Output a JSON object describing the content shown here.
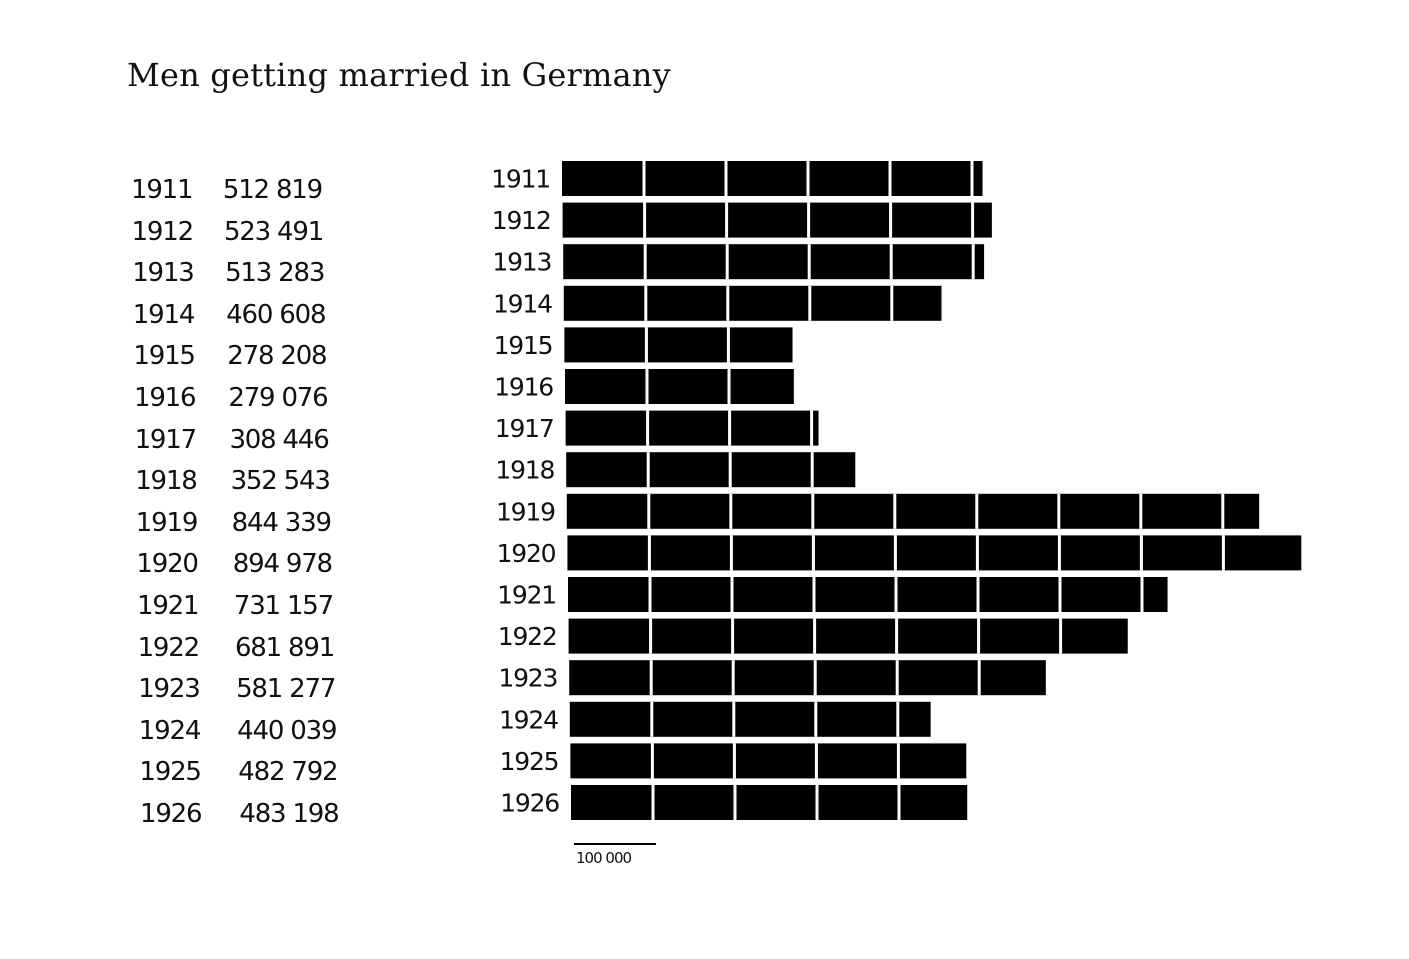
{
  "title": "Men getting married in Germany",
  "table": {
    "rows": [
      {
        "year": "1911",
        "value": "512 819"
      },
      {
        "year": "1912",
        "value": "523 491"
      },
      {
        "year": "1913",
        "value": "513 283"
      },
      {
        "year": "1914",
        "value": "460 608"
      },
      {
        "year": "1915",
        "value": "278 208"
      },
      {
        "year": "1916",
        "value": "279 076"
      },
      {
        "year": "1917",
        "value": "308 446"
      },
      {
        "year": "1918",
        "value": "352 543"
      },
      {
        "year": "1919",
        "value": "844 339"
      },
      {
        "year": "1920",
        "value": "894 978"
      },
      {
        "year": "1921",
        "value": "731 157"
      },
      {
        "year": "1922",
        "value": "681 891"
      },
      {
        "year": "1923",
        "value": "581 277"
      },
      {
        "year": "1924",
        "value": "440 039"
      },
      {
        "year": "1925",
        "value": "482 792"
      },
      {
        "year": "1926",
        "value": "483 198"
      }
    ]
  },
  "chart_data": {
    "type": "bar",
    "orientation": "horizontal",
    "title": "Men getting married in Germany",
    "categories": [
      "1911",
      "1912",
      "1913",
      "1914",
      "1915",
      "1916",
      "1917",
      "1918",
      "1919",
      "1920",
      "1921",
      "1922",
      "1923",
      "1924",
      "1925",
      "1926"
    ],
    "values": [
      512819,
      523491,
      513283,
      460608,
      278208,
      279076,
      308446,
      352543,
      844339,
      894978,
      731157,
      681891,
      581277,
      440039,
      482792,
      483198
    ],
    "unit_block": 100000,
    "scale_label": "100 000",
    "bar_color": "#000000",
    "block_divider_color": "#ffffff",
    "grid": false,
    "legend": "none"
  }
}
